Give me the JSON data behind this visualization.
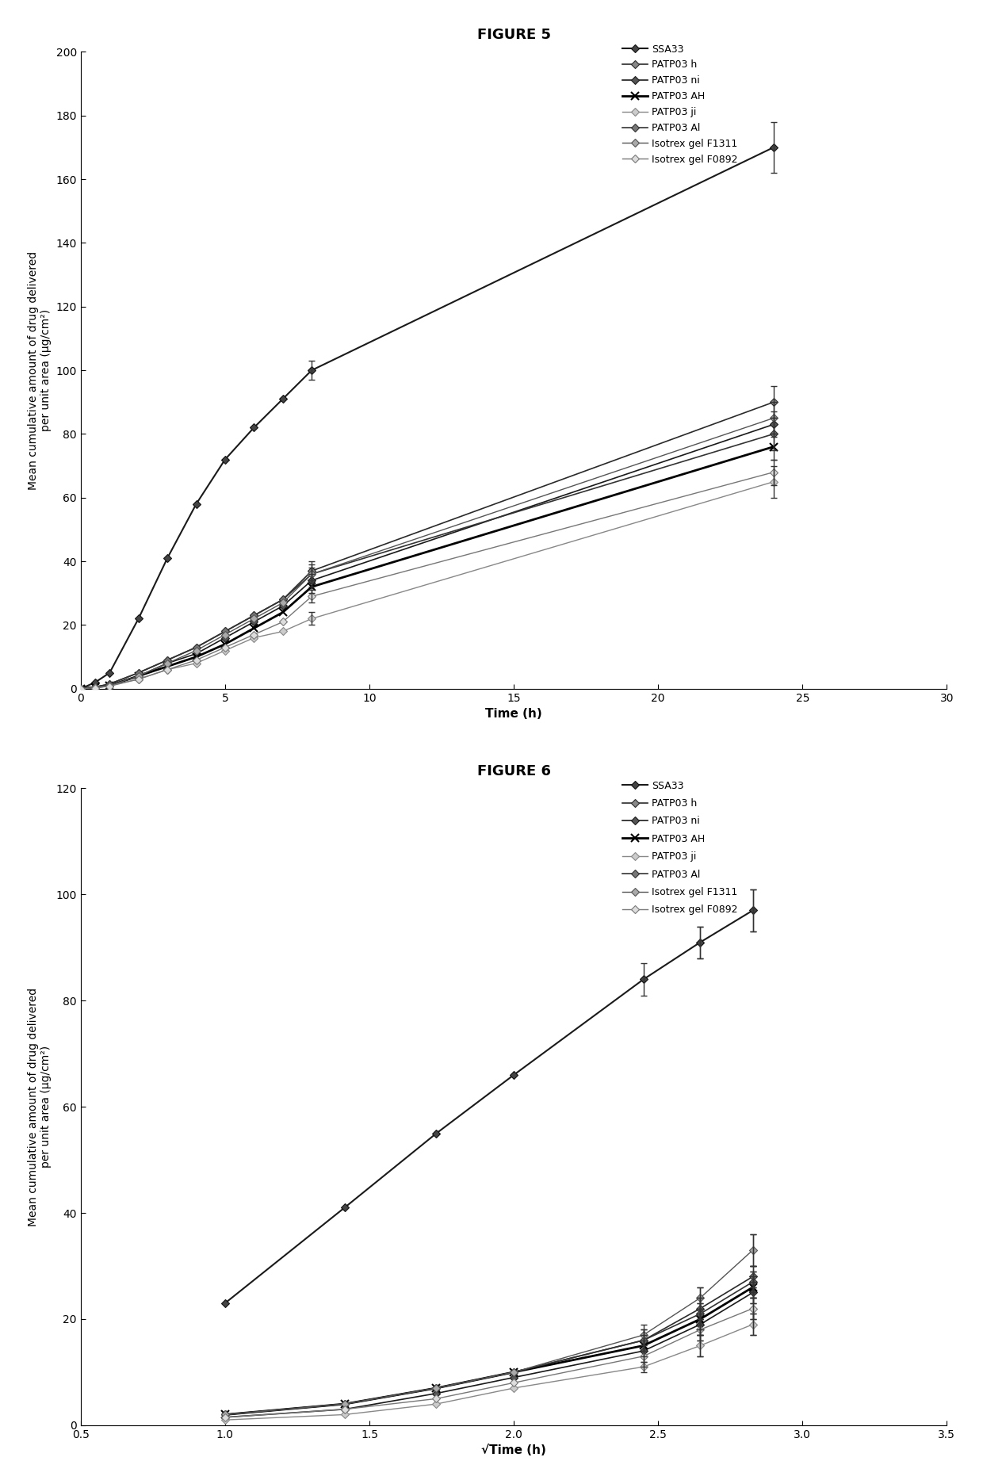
{
  "fig5_title": "FIGURE 5",
  "fig6_title": "FIGURE 6",
  "ylabel": "Mean cumulative amount of drug delivered\nper unit area (μg/cm²)",
  "fig5_xlabel": "Time (h)",
  "fig6_xlabel": "√Time (h)",
  "fig5_xlim": [
    0,
    30
  ],
  "fig5_ylim": [
    0,
    200
  ],
  "fig6_xlim": [
    0.5,
    3.5
  ],
  "fig6_ylim": [
    0,
    120
  ],
  "series_order": [
    "SSA33",
    "PATP03 h",
    "PATP03 ni",
    "PATP03 AH",
    "PATP03 ji",
    "PATP03 Al",
    "Isotrex gel F1311",
    "Isotrex gel F0892"
  ],
  "fig5_data": {
    "SSA33": {
      "x": [
        0,
        0.5,
        1,
        2,
        3,
        4,
        5,
        6,
        7,
        8,
        24
      ],
      "y": [
        0,
        2,
        5,
        22,
        41,
        58,
        72,
        82,
        91,
        100,
        170
      ],
      "yerr_show": {
        "8": 3,
        "24": 8
      }
    },
    "PATP03 h": {
      "x": [
        0,
        0.5,
        1,
        2,
        3,
        4,
        5,
        6,
        7,
        8,
        24
      ],
      "y": [
        0,
        0.5,
        1.5,
        5,
        9,
        13,
        18,
        23,
        28,
        37,
        90
      ],
      "yerr_show": {
        "8": 3,
        "24": 5
      }
    },
    "PATP03 ni": {
      "x": [
        0,
        0.5,
        1,
        2,
        3,
        4,
        5,
        6,
        7,
        8,
        24
      ],
      "y": [
        0,
        0.5,
        1,
        4,
        8,
        11,
        16,
        21,
        26,
        34,
        83
      ],
      "yerr_show": {
        "8": 2,
        "24": 4
      }
    },
    "PATP03 AH": {
      "x": [
        0,
        0.5,
        1,
        2,
        3,
        4,
        5,
        6,
        7,
        8,
        24
      ],
      "y": [
        0,
        0.5,
        1,
        4,
        7,
        10,
        14,
        19,
        24,
        32,
        76
      ],
      "yerr_show": {
        "8": 2,
        "24": 4
      }
    },
    "PATP03 ji": {
      "x": [
        0,
        0.5,
        1,
        2,
        3,
        4,
        5,
        6,
        7,
        8,
        24
      ],
      "y": [
        0,
        0.5,
        1,
        3,
        6,
        8,
        12,
        16,
        18,
        22,
        65
      ],
      "yerr_show": {
        "8": 2,
        "24": 5
      }
    },
    "PATP03 Al": {
      "x": [
        0,
        0.5,
        1,
        2,
        3,
        4,
        5,
        6,
        7,
        8,
        24
      ],
      "y": [
        0,
        0.5,
        1.5,
        5,
        9,
        13,
        18,
        23,
        28,
        36,
        80
      ],
      "yerr_show": {
        "8": 2,
        "24": 5
      }
    },
    "Isotrex gel F1311": {
      "x": [
        0,
        0.5,
        1,
        2,
        3,
        4,
        5,
        6,
        7,
        8,
        24
      ],
      "y": [
        0,
        0.5,
        1,
        4,
        8,
        12,
        17,
        22,
        27,
        36,
        85
      ],
      "yerr_show": {
        "8": 3,
        "24": 5
      }
    },
    "Isotrex gel F0892": {
      "x": [
        0,
        0.5,
        1,
        2,
        3,
        4,
        5,
        6,
        7,
        8,
        24
      ],
      "y": [
        0,
        0.3,
        0.8,
        3,
        6,
        9,
        13,
        17,
        21,
        29,
        68
      ],
      "yerr_show": {
        "8": 2,
        "24": 4
      }
    }
  },
  "fig6_data": {
    "SSA33": {
      "x": [
        1.0,
        1.414,
        1.732,
        2.0,
        2.449,
        2.646,
        2.828
      ],
      "y": [
        23,
        41,
        55,
        66,
        84,
        91,
        97
      ],
      "yerr": [
        1,
        2,
        3,
        3,
        3,
        3,
        4
      ]
    },
    "PATP03 h": {
      "x": [
        1.0,
        1.414,
        1.732,
        2.0,
        2.449,
        2.646,
        2.828
      ],
      "y": [
        2,
        4,
        7,
        10,
        16,
        22,
        28
      ],
      "yerr": [
        0.5,
        1,
        1,
        1,
        2,
        2,
        2
      ]
    },
    "PATP03 ni": {
      "x": [
        1.0,
        1.414,
        1.732,
        2.0,
        2.449,
        2.646,
        2.828
      ],
      "y": [
        1.5,
        3,
        6,
        9,
        14,
        19,
        25
      ],
      "yerr": [
        0.5,
        1,
        1,
        1,
        2,
        2,
        2
      ]
    },
    "PATP03 AH": {
      "x": [
        1.0,
        1.414,
        1.732,
        2.0,
        2.449,
        2.646,
        2.828
      ],
      "y": [
        2,
        4,
        7,
        10,
        15,
        20,
        26
      ],
      "yerr": [
        0.5,
        1,
        1,
        1,
        2,
        2,
        2
      ]
    },
    "PATP03 ji": {
      "x": [
        1.0,
        1.414,
        1.732,
        2.0,
        2.449,
        2.646,
        2.828
      ],
      "y": [
        1,
        2,
        4,
        7,
        11,
        15,
        19
      ],
      "yerr": [
        0.5,
        0.5,
        1,
        1,
        1,
        2,
        2
      ]
    },
    "PATP03 Al": {
      "x": [
        1.0,
        1.414,
        1.732,
        2.0,
        2.449,
        2.646,
        2.828
      ],
      "y": [
        2,
        4,
        7,
        10,
        16,
        21,
        27
      ],
      "yerr": [
        0.5,
        1,
        1,
        1,
        2,
        2,
        2
      ]
    },
    "Isotrex gel F1311": {
      "x": [
        1.0,
        1.414,
        1.732,
        2.0,
        2.449,
        2.646,
        2.828
      ],
      "y": [
        2,
        4,
        7,
        10,
        17,
        24,
        33
      ],
      "yerr": [
        0.5,
        1,
        1,
        1,
        2,
        2,
        3
      ]
    },
    "Isotrex gel F0892": {
      "x": [
        1.0,
        1.414,
        1.732,
        2.0,
        2.449,
        2.646,
        2.828
      ],
      "y": [
        1.5,
        3,
        5,
        8,
        13,
        18,
        22
      ],
      "yerr": [
        0.5,
        1,
        1,
        1,
        2,
        2,
        2
      ]
    }
  }
}
